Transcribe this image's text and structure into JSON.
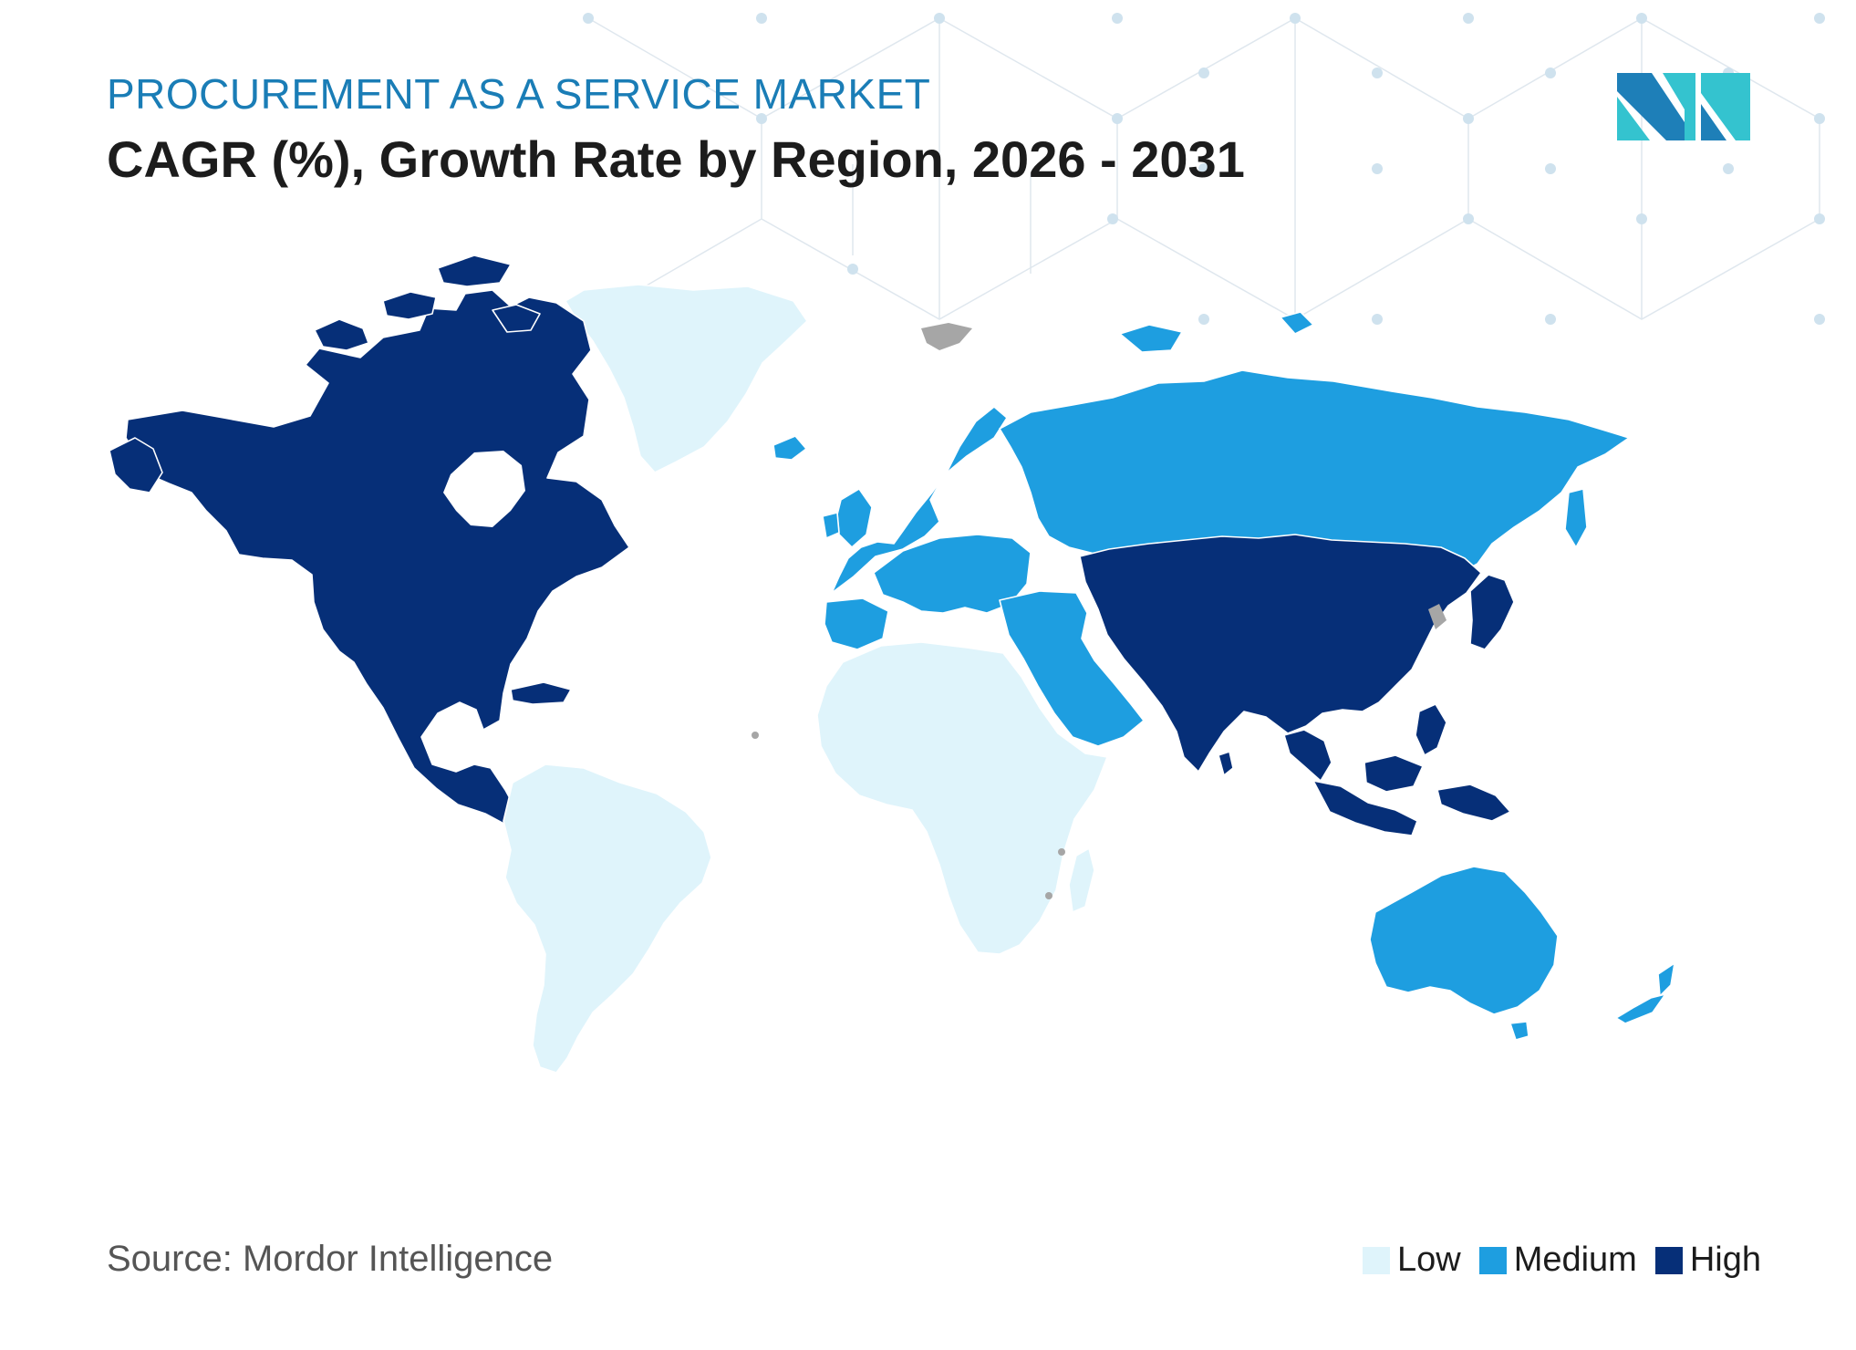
{
  "header": {
    "kicker": "PROCUREMENT AS A SERVICE MARKET",
    "title": "CAGR (%), Growth Rate by Region, 2026 - 2031"
  },
  "footer": {
    "source": "Source: Mordor Intelligence"
  },
  "legend": [
    {
      "label": "Low",
      "color": "#dff4fb"
    },
    {
      "label": "Medium",
      "color": "#1e9ee0"
    },
    {
      "label": "High",
      "color": "#062f78"
    }
  ],
  "colors": {
    "no_data": "#a6a6a6",
    "border": "#ffffff"
  },
  "map_data": {
    "type": "choropleth",
    "regions": [
      {
        "name": "North America",
        "level": "High"
      },
      {
        "name": "South America",
        "level": "Low"
      },
      {
        "name": "Europe",
        "level": "Medium"
      },
      {
        "name": "Middle East",
        "level": "Medium"
      },
      {
        "name": "Africa",
        "level": "Low"
      },
      {
        "name": "Asia",
        "level": "High"
      },
      {
        "name": "Australia and New Zealand",
        "level": "Medium"
      }
    ]
  },
  "logo": {
    "icon": "mordor-intelligence-logo"
  }
}
